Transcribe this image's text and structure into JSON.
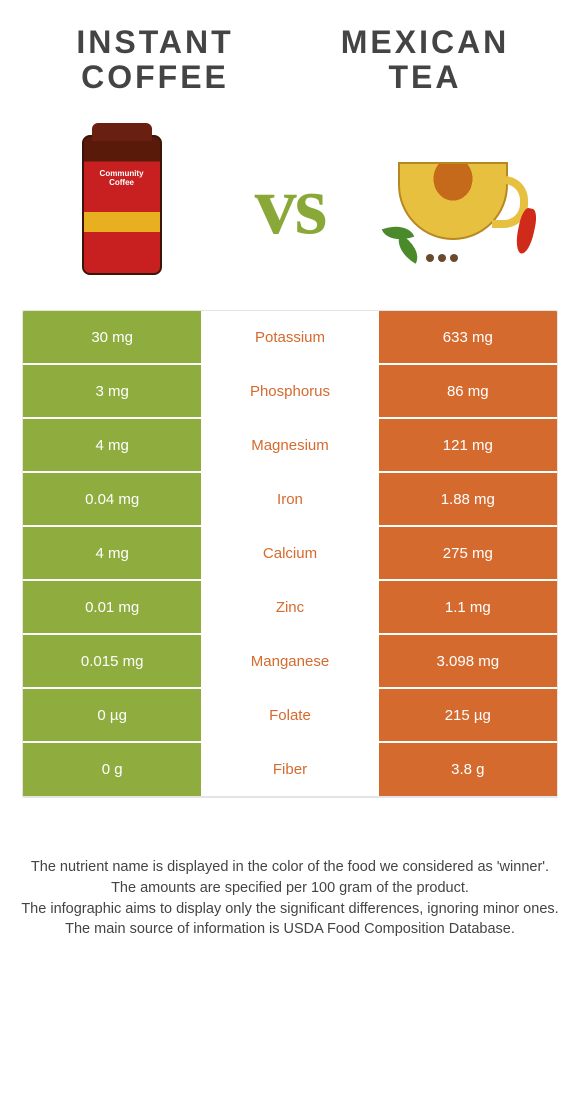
{
  "titles": {
    "left": "Instant coffee",
    "right": "Mexican tea"
  },
  "vs": "vs",
  "colors": {
    "left": "#8fad3e",
    "right": "#d56a2e",
    "mid_text": "#d56a2e",
    "bg": "#ffffff"
  },
  "coffee_label": "Community Coffee",
  "table": {
    "rows": [
      {
        "left": "30 mg",
        "label": "Potassium",
        "right": "633 mg",
        "winner": "right"
      },
      {
        "left": "3 mg",
        "label": "Phosphorus",
        "right": "86 mg",
        "winner": "right"
      },
      {
        "left": "4 mg",
        "label": "Magnesium",
        "right": "121 mg",
        "winner": "right"
      },
      {
        "left": "0.04 mg",
        "label": "Iron",
        "right": "1.88 mg",
        "winner": "right"
      },
      {
        "left": "4 mg",
        "label": "Calcium",
        "right": "275 mg",
        "winner": "right"
      },
      {
        "left": "0.01 mg",
        "label": "Zinc",
        "right": "1.1 mg",
        "winner": "right"
      },
      {
        "left": "0.015 mg",
        "label": "Manganese",
        "right": "3.098 mg",
        "winner": "right"
      },
      {
        "left": "0 µg",
        "label": "Folate",
        "right": "215 µg",
        "winner": "right"
      },
      {
        "left": "0 g",
        "label": "Fiber",
        "right": "3.8 g",
        "winner": "right"
      }
    ]
  },
  "footer": {
    "l1": "The nutrient name is displayed in the color of the food we considered as 'winner'.",
    "l2": "The amounts are specified per 100 gram of the product.",
    "l3": "The infographic aims to display only the significant differences, ignoring minor ones.",
    "l4": "The main source of information is USDA Food Composition Database."
  }
}
